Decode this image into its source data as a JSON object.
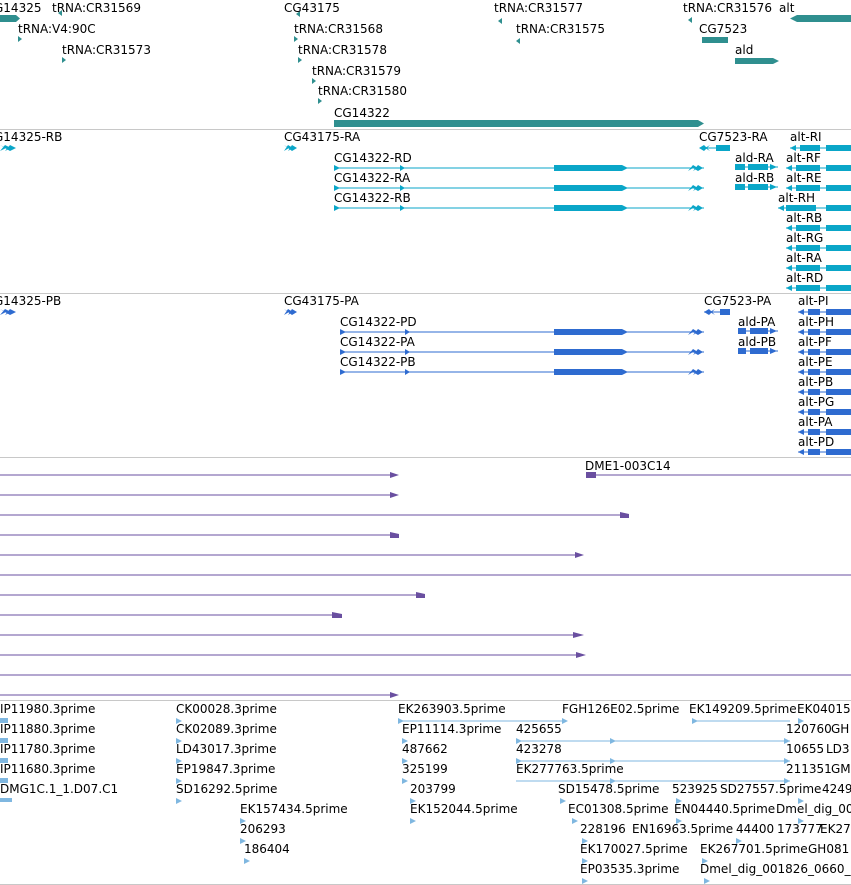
{
  "colors": {
    "gene": "#2f8f8f",
    "transcript": "#0aa6c8",
    "protein": "#2e6bd0",
    "rna": "#6a4fa0",
    "est": "#7fb7e0"
  },
  "genes_track": {
    "labels": [
      "G14325",
      "tRNA:CR31569",
      "tRNA:V4:90C",
      "tRNA:CR31573",
      "CG43175",
      "tRNA:CR31568",
      "tRNA:CR31578",
      "tRNA:CR31579",
      "tRNA:CR31580",
      "CG14322",
      "tRNA:CR31577",
      "tRNA:CR31575",
      "tRNA:CR31576",
      "CG7523",
      "ald",
      "alt"
    ]
  },
  "transcripts_track": {
    "labels": [
      "G14325-RB",
      "CG43175-RA",
      "CG14322-RD",
      "CG14322-RA",
      "CG14322-RB",
      "CG7523-RA",
      "ald-RA",
      "ald-RB",
      "alt-RI",
      "alt-RF",
      "alt-RE",
      "alt-RH",
      "alt-RB",
      "alt-RG",
      "alt-RA",
      "alt-RD"
    ]
  },
  "proteins_track": {
    "labels": [
      "G14325-PB",
      "CG43175-PA",
      "CG14322-PD",
      "CG14322-PA",
      "CG14322-PB",
      "CG7523-PA",
      "ald-PA",
      "ald-PB",
      "alt-PI",
      "alt-PH",
      "alt-PF",
      "alt-PE",
      "alt-PB",
      "alt-PG",
      "alt-PA",
      "alt-PD"
    ]
  },
  "rna_track": {
    "labels": [
      "DME1-003C14"
    ]
  },
  "est_track": {
    "labels": [
      "IP11980.3prime",
      "IP11880.3prime",
      "IP11780.3prime",
      "IP11680.3prime",
      "DMG1C.1_1.D07.C1",
      "CK00028.3prime",
      "CK02089.3prime",
      "LD43017.3prime",
      "EP19847.3prime",
      "SD16292.5prime",
      "EK157434.5prime",
      "206293",
      "186404",
      "EK263903.5prime",
      "EP11114.3prime",
      "487662",
      "325199",
      "203799",
      "EK152044.5prime",
      "425655",
      "423278",
      "EK277763.5prime",
      "FGH126E02.5prime",
      "SD15478.5prime",
      "EC01308.5prime",
      "228196",
      "EN16963.5prime",
      "EK170027.5prime",
      "EP03535.3prime",
      "EK149209.5prime",
      "EK04015",
      "120760",
      "GH",
      "10655",
      "LD3",
      "211351",
      "GM",
      "523925",
      "SD27557.5prime",
      "4249",
      "EN04440.5prime",
      "Dmel_dig_00",
      "44400",
      "173777",
      "EK27",
      "EK267701.5prime",
      "GH081",
      "Dmel_dig_001826_0660_"
    ]
  }
}
